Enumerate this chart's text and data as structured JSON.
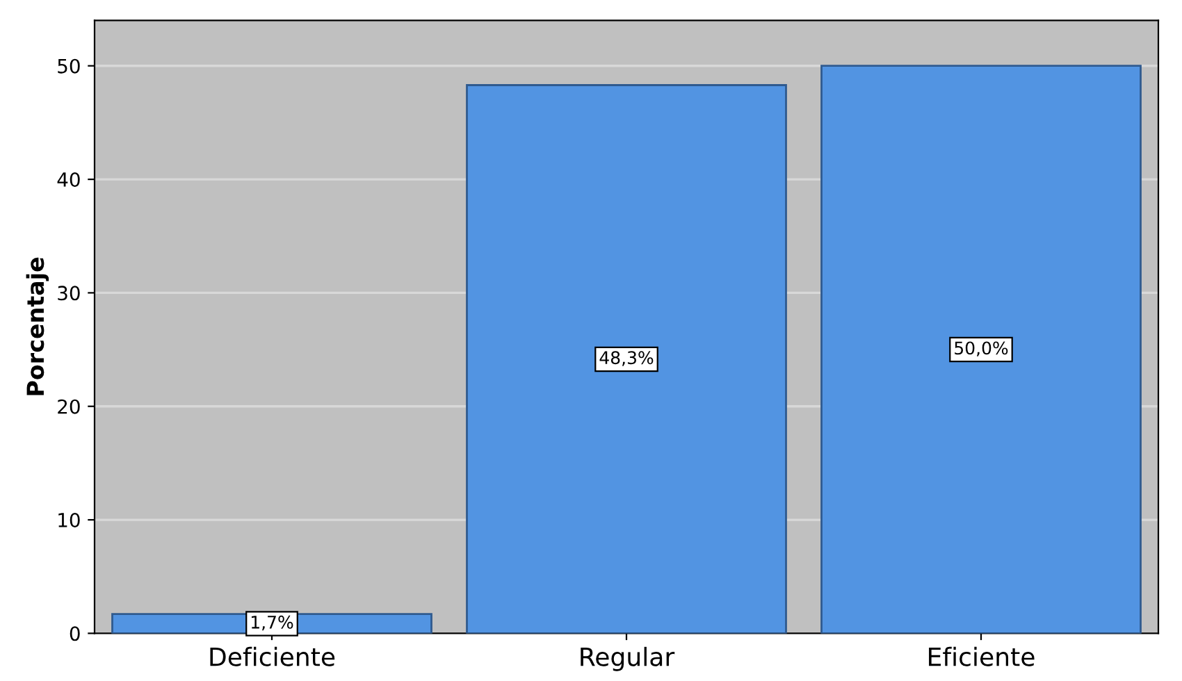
{
  "chart_data": {
    "type": "bar",
    "ylabel": "Porcentaje",
    "categories": [
      "Deficiente",
      "Regular",
      "Eficiente"
    ],
    "values": [
      1.7,
      48.3,
      50.0
    ],
    "value_labels": [
      "1,7%",
      "48,3%",
      "50,0%"
    ],
    "color": "#5294e2",
    "ylim": [
      0,
      54
    ],
    "yticks": [
      0,
      10,
      20,
      30,
      40,
      50
    ],
    "grid": "y"
  }
}
